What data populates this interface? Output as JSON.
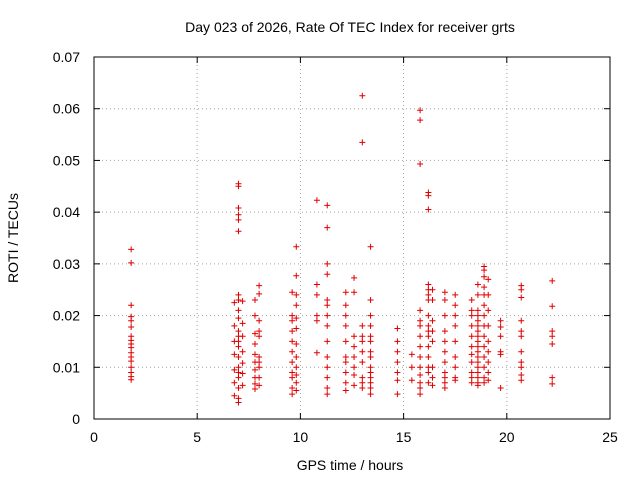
{
  "chart_data": {
    "type": "scatter",
    "title": "Day 023 of 2026, Rate Of TEC Index for receiver grts",
    "xlabel": "GPS time / hours",
    "ylabel": "ROTI / TECUs",
    "xlim": [
      0,
      25
    ],
    "ylim": [
      0,
      0.07
    ],
    "x_ticks": [
      "0",
      "5",
      "10",
      "15",
      "20",
      "25"
    ],
    "y_ticks": [
      "0",
      "0.01",
      "0.02",
      "0.03",
      "0.04",
      "0.05",
      "0.06",
      "0.07"
    ],
    "grid": true,
    "marker": "plus",
    "color": "#e00000",
    "points": [
      [
        1.8,
        0.0328
      ],
      [
        1.8,
        0.0302
      ],
      [
        1.8,
        0.022
      ],
      [
        1.8,
        0.0198
      ],
      [
        1.8,
        0.019
      ],
      [
        1.8,
        0.0178
      ],
      [
        1.8,
        0.016
      ],
      [
        1.8,
        0.0152
      ],
      [
        1.8,
        0.0145
      ],
      [
        1.8,
        0.0138
      ],
      [
        1.8,
        0.0128
      ],
      [
        1.8,
        0.012
      ],
      [
        1.8,
        0.0112
      ],
      [
        1.8,
        0.01
      ],
      [
        1.8,
        0.009
      ],
      [
        1.8,
        0.0082
      ],
      [
        1.8,
        0.0076
      ],
      [
        6.8,
        0.0225
      ],
      [
        6.8,
        0.018
      ],
      [
        6.8,
        0.015
      ],
      [
        6.8,
        0.0125
      ],
      [
        6.8,
        0.0095
      ],
      [
        6.8,
        0.007
      ],
      [
        6.8,
        0.0045
      ],
      [
        7.0,
        0.0455
      ],
      [
        7.0,
        0.045
      ],
      [
        7.0,
        0.0408
      ],
      [
        7.0,
        0.0395
      ],
      [
        7.0,
        0.0385
      ],
      [
        7.0,
        0.0363
      ],
      [
        7.0,
        0.024
      ],
      [
        7.0,
        0.023
      ],
      [
        7.0,
        0.021
      ],
      [
        7.0,
        0.0195
      ],
      [
        7.0,
        0.017
      ],
      [
        7.0,
        0.016
      ],
      [
        7.0,
        0.015
      ],
      [
        7.0,
        0.014
      ],
      [
        7.0,
        0.012
      ],
      [
        7.0,
        0.01
      ],
      [
        7.0,
        0.009
      ],
      [
        7.0,
        0.008
      ],
      [
        7.0,
        0.006
      ],
      [
        7.0,
        0.004
      ],
      [
        7.0,
        0.0032
      ],
      [
        7.2,
        0.0228
      ],
      [
        7.2,
        0.0185
      ],
      [
        7.2,
        0.016
      ],
      [
        7.2,
        0.013
      ],
      [
        7.2,
        0.0108
      ],
      [
        7.2,
        0.0088
      ],
      [
        7.2,
        0.0065
      ],
      [
        7.8,
        0.023
      ],
      [
        7.8,
        0.02
      ],
      [
        7.8,
        0.0165
      ],
      [
        7.8,
        0.0145
      ],
      [
        7.8,
        0.0125
      ],
      [
        7.8,
        0.011
      ],
      [
        7.8,
        0.0095
      ],
      [
        7.8,
        0.008
      ],
      [
        7.8,
        0.0068
      ],
      [
        7.8,
        0.0058
      ],
      [
        8.0,
        0.0258
      ],
      [
        8.0,
        0.0242
      ],
      [
        8.0,
        0.019
      ],
      [
        8.0,
        0.017
      ],
      [
        8.0,
        0.016
      ],
      [
        8.0,
        0.012
      ],
      [
        8.0,
        0.011
      ],
      [
        8.0,
        0.01
      ],
      [
        8.0,
        0.008
      ],
      [
        8.0,
        0.0065
      ],
      [
        9.6,
        0.0245
      ],
      [
        9.6,
        0.02
      ],
      [
        9.6,
        0.019
      ],
      [
        9.6,
        0.017
      ],
      [
        9.6,
        0.015
      ],
      [
        9.6,
        0.013
      ],
      [
        9.6,
        0.011
      ],
      [
        9.6,
        0.009
      ],
      [
        9.6,
        0.008
      ],
      [
        9.6,
        0.006
      ],
      [
        9.6,
        0.0048
      ],
      [
        9.8,
        0.0333
      ],
      [
        9.8,
        0.0277
      ],
      [
        9.8,
        0.024
      ],
      [
        9.8,
        0.022
      ],
      [
        9.8,
        0.0195
      ],
      [
        9.8,
        0.0175
      ],
      [
        9.8,
        0.0145
      ],
      [
        9.8,
        0.012
      ],
      [
        9.8,
        0.01
      ],
      [
        9.8,
        0.0085
      ],
      [
        9.8,
        0.007
      ],
      [
        9.8,
        0.0055
      ],
      [
        10.8,
        0.0423
      ],
      [
        10.8,
        0.026
      ],
      [
        10.8,
        0.024
      ],
      [
        10.8,
        0.02
      ],
      [
        10.8,
        0.019
      ],
      [
        10.8,
        0.0128
      ],
      [
        11.3,
        0.0413
      ],
      [
        11.3,
        0.037
      ],
      [
        11.3,
        0.03
      ],
      [
        11.3,
        0.028
      ],
      [
        11.3,
        0.023
      ],
      [
        11.3,
        0.022
      ],
      [
        11.3,
        0.02
      ],
      [
        11.3,
        0.018
      ],
      [
        11.3,
        0.015
      ],
      [
        11.3,
        0.012
      ],
      [
        11.3,
        0.01
      ],
      [
        11.3,
        0.008
      ],
      [
        11.3,
        0.006
      ],
      [
        11.3,
        0.0048
      ],
      [
        12.2,
        0.0245
      ],
      [
        12.2,
        0.022
      ],
      [
        12.2,
        0.02
      ],
      [
        12.2,
        0.018
      ],
      [
        12.2,
        0.015
      ],
      [
        12.2,
        0.012
      ],
      [
        12.2,
        0.011
      ],
      [
        12.2,
        0.009
      ],
      [
        12.2,
        0.007
      ],
      [
        12.2,
        0.0055
      ],
      [
        12.6,
        0.0273
      ],
      [
        12.6,
        0.0245
      ],
      [
        12.6,
        0.016
      ],
      [
        12.6,
        0.014
      ],
      [
        12.6,
        0.012
      ],
      [
        12.6,
        0.01
      ],
      [
        12.6,
        0.0085
      ],
      [
        12.6,
        0.0065
      ],
      [
        13.0,
        0.0625
      ],
      [
        13.0,
        0.0535
      ],
      [
        13.0,
        0.018
      ],
      [
        13.0,
        0.016
      ],
      [
        13.0,
        0.015
      ],
      [
        13.0,
        0.013
      ],
      [
        13.0,
        0.011
      ],
      [
        13.0,
        0.008
      ],
      [
        13.0,
        0.007
      ],
      [
        13.0,
        0.006
      ],
      [
        13.4,
        0.0333
      ],
      [
        13.4,
        0.023
      ],
      [
        13.4,
        0.02
      ],
      [
        13.4,
        0.018
      ],
      [
        13.4,
        0.016
      ],
      [
        13.4,
        0.015
      ],
      [
        13.4,
        0.013
      ],
      [
        13.4,
        0.012
      ],
      [
        13.4,
        0.01
      ],
      [
        13.4,
        0.009
      ],
      [
        13.4,
        0.008
      ],
      [
        13.4,
        0.007
      ],
      [
        13.4,
        0.006
      ],
      [
        13.4,
        0.0048
      ],
      [
        14.7,
        0.0175
      ],
      [
        14.7,
        0.015
      ],
      [
        14.7,
        0.013
      ],
      [
        14.7,
        0.011
      ],
      [
        14.7,
        0.009
      ],
      [
        14.7,
        0.0075
      ],
      [
        14.7,
        0.0048
      ],
      [
        15.4,
        0.0125
      ],
      [
        15.4,
        0.01
      ],
      [
        15.4,
        0.0075
      ],
      [
        15.8,
        0.0597
      ],
      [
        15.8,
        0.0578
      ],
      [
        15.8,
        0.0493
      ],
      [
        15.8,
        0.021
      ],
      [
        15.8,
        0.019
      ],
      [
        15.8,
        0.018
      ],
      [
        15.8,
        0.016
      ],
      [
        15.8,
        0.014
      ],
      [
        15.8,
        0.012
      ],
      [
        15.8,
        0.01
      ],
      [
        15.8,
        0.0085
      ],
      [
        15.8,
        0.007
      ],
      [
        15.8,
        0.006
      ],
      [
        15.8,
        0.0048
      ],
      [
        16.2,
        0.0438
      ],
      [
        16.2,
        0.0432
      ],
      [
        16.2,
        0.0405
      ],
      [
        16.2,
        0.026
      ],
      [
        16.2,
        0.025
      ],
      [
        16.2,
        0.024
      ],
      [
        16.2,
        0.023
      ],
      [
        16.2,
        0.02
      ],
      [
        16.2,
        0.018
      ],
      [
        16.2,
        0.017
      ],
      [
        16.2,
        0.016
      ],
      [
        16.2,
        0.014
      ],
      [
        16.2,
        0.012
      ],
      [
        16.2,
        0.01
      ],
      [
        16.2,
        0.009
      ],
      [
        16.2,
        0.007
      ],
      [
        16.4,
        0.025
      ],
      [
        16.4,
        0.023
      ],
      [
        16.4,
        0.019
      ],
      [
        16.4,
        0.017
      ],
      [
        16.4,
        0.015
      ],
      [
        16.4,
        0.01
      ],
      [
        16.4,
        0.008
      ],
      [
        16.4,
        0.0065
      ],
      [
        17.0,
        0.0245
      ],
      [
        17.0,
        0.023
      ],
      [
        17.0,
        0.02
      ],
      [
        17.0,
        0.017
      ],
      [
        17.0,
        0.015
      ],
      [
        17.0,
        0.013
      ],
      [
        17.0,
        0.011
      ],
      [
        17.0,
        0.009
      ],
      [
        17.0,
        0.008
      ],
      [
        17.0,
        0.007
      ],
      [
        17.0,
        0.006
      ],
      [
        17.5,
        0.024
      ],
      [
        17.5,
        0.022
      ],
      [
        17.5,
        0.02
      ],
      [
        17.5,
        0.018
      ],
      [
        17.5,
        0.015
      ],
      [
        17.5,
        0.012
      ],
      [
        17.5,
        0.01
      ],
      [
        17.5,
        0.008
      ],
      [
        17.5,
        0.0075
      ],
      [
        18.3,
        0.023
      ],
      [
        18.3,
        0.021
      ],
      [
        18.3,
        0.02
      ],
      [
        18.3,
        0.018
      ],
      [
        18.3,
        0.016
      ],
      [
        18.3,
        0.014
      ],
      [
        18.3,
        0.0125
      ],
      [
        18.3,
        0.011
      ],
      [
        18.3,
        0.009
      ],
      [
        18.3,
        0.008
      ],
      [
        18.3,
        0.007
      ],
      [
        18.6,
        0.026
      ],
      [
        18.6,
        0.024
      ],
      [
        18.6,
        0.021
      ],
      [
        18.6,
        0.02
      ],
      [
        18.6,
        0.019
      ],
      [
        18.6,
        0.018
      ],
      [
        18.6,
        0.017
      ],
      [
        18.6,
        0.016
      ],
      [
        18.6,
        0.015
      ],
      [
        18.6,
        0.014
      ],
      [
        18.6,
        0.013
      ],
      [
        18.6,
        0.012
      ],
      [
        18.6,
        0.011
      ],
      [
        18.6,
        0.01
      ],
      [
        18.6,
        0.009
      ],
      [
        18.6,
        0.008
      ],
      [
        18.6,
        0.007
      ],
      [
        18.6,
        0.0065
      ],
      [
        18.9,
        0.0295
      ],
      [
        18.9,
        0.0288
      ],
      [
        18.9,
        0.0275
      ],
      [
        18.9,
        0.0255
      ],
      [
        18.9,
        0.024
      ],
      [
        18.9,
        0.022
      ],
      [
        18.9,
        0.02
      ],
      [
        18.9,
        0.018
      ],
      [
        18.9,
        0.016
      ],
      [
        18.9,
        0.014
      ],
      [
        18.9,
        0.012
      ],
      [
        18.9,
        0.01
      ],
      [
        18.9,
        0.008
      ],
      [
        18.9,
        0.007
      ],
      [
        19.1,
        0.027
      ],
      [
        19.1,
        0.024
      ],
      [
        19.1,
        0.021
      ],
      [
        19.1,
        0.018
      ],
      [
        19.1,
        0.015
      ],
      [
        19.1,
        0.013
      ],
      [
        19.1,
        0.011
      ],
      [
        19.1,
        0.009
      ],
      [
        19.1,
        0.0075
      ],
      [
        19.7,
        0.019
      ],
      [
        19.7,
        0.0178
      ],
      [
        19.7,
        0.016
      ],
      [
        19.7,
        0.013
      ],
      [
        19.7,
        0.0125
      ],
      [
        19.7,
        0.006
      ],
      [
        20.7,
        0.0258
      ],
      [
        20.7,
        0.025
      ],
      [
        20.7,
        0.0235
      ],
      [
        20.7,
        0.019
      ],
      [
        20.7,
        0.017
      ],
      [
        20.7,
        0.016
      ],
      [
        20.7,
        0.013
      ],
      [
        20.7,
        0.011
      ],
      [
        20.7,
        0.01
      ],
      [
        20.7,
        0.0085
      ],
      [
        20.7,
        0.0075
      ],
      [
        22.2,
        0.0267
      ],
      [
        22.2,
        0.0218
      ],
      [
        22.2,
        0.017
      ],
      [
        22.2,
        0.016
      ],
      [
        22.2,
        0.0145
      ],
      [
        22.2,
        0.008
      ],
      [
        22.2,
        0.0068
      ]
    ]
  }
}
